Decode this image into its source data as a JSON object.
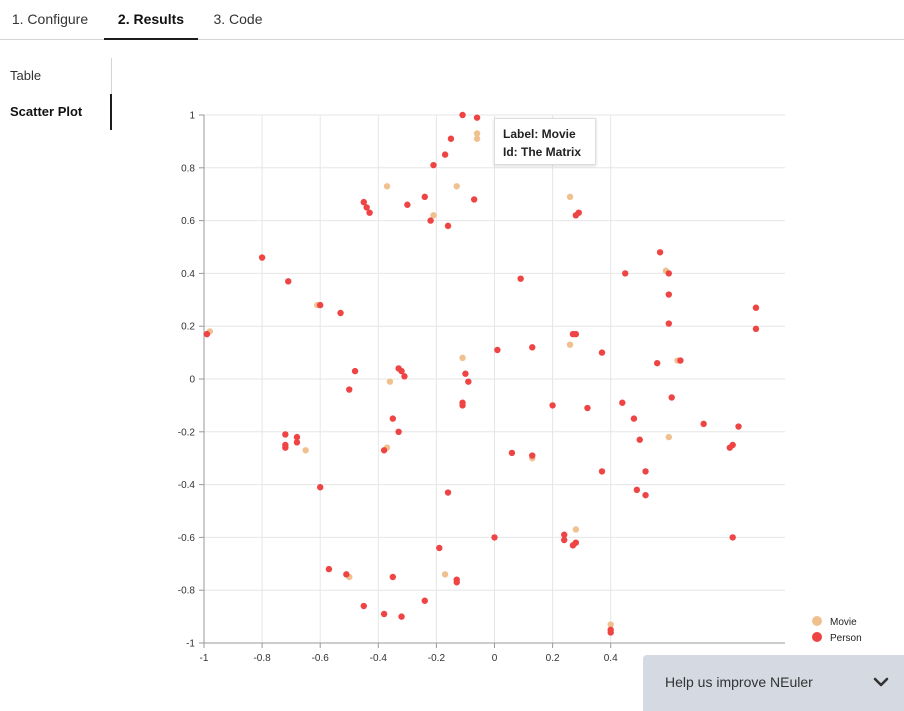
{
  "tabs": [
    {
      "label": "1. Configure"
    },
    {
      "label": "2. Results"
    },
    {
      "label": "3. Code"
    }
  ],
  "sidebar": {
    "items": [
      {
        "label": "Table"
      },
      {
        "label": "Scatter Plot"
      }
    ]
  },
  "tooltip": {
    "line1": "Label: Movie",
    "line2": "Id: The Matrix"
  },
  "feedback": {
    "label": "Help us improve NEuler"
  },
  "colors": {
    "movie": "#f0c08e",
    "person": "#ef4444"
  },
  "chart_data": {
    "type": "scatter",
    "xlim": [
      -1,
      1
    ],
    "ylim": [
      -1,
      1
    ],
    "x_ticks": [
      "-1",
      "-0.8",
      "-0.6",
      "-0.4",
      "-0.2",
      "0",
      "0.2",
      "0.4"
    ],
    "y_ticks": [
      "1",
      "0.8",
      "0.6",
      "0.4",
      "0.2",
      "0",
      "-0.2",
      "-0.4",
      "-0.6",
      "-0.8",
      "-1"
    ],
    "grid": true,
    "legend_position": "bottom-right",
    "series": [
      {
        "name": "Movie",
        "points": [
          [
            -0.98,
            0.18
          ],
          [
            -0.37,
            0.73
          ],
          [
            -0.21,
            0.62
          ],
          [
            -0.13,
            0.73
          ],
          [
            -0.06,
            0.93
          ],
          [
            -0.06,
            0.91
          ],
          [
            0.26,
            0.69
          ],
          [
            -0.61,
            0.28
          ],
          [
            -0.11,
            0.08
          ],
          [
            0.26,
            0.13
          ],
          [
            0.59,
            0.41
          ],
          [
            0.63,
            0.07
          ],
          [
            0.9,
            0.27
          ],
          [
            -0.36,
            -0.01
          ],
          [
            -0.37,
            -0.26
          ],
          [
            -0.65,
            -0.27
          ],
          [
            0.13,
            -0.3
          ],
          [
            0.28,
            -0.57
          ],
          [
            0.6,
            -0.22
          ],
          [
            -0.5,
            -0.75
          ],
          [
            -0.17,
            -0.74
          ],
          [
            0.4,
            -0.93
          ]
        ]
      },
      {
        "name": "Person",
        "points": [
          [
            -0.11,
            1.0
          ],
          [
            -0.06,
            0.99
          ],
          [
            -0.15,
            0.91
          ],
          [
            -0.17,
            0.85
          ],
          [
            -0.21,
            0.81
          ],
          [
            -0.45,
            0.67
          ],
          [
            -0.44,
            0.65
          ],
          [
            -0.43,
            0.63
          ],
          [
            -0.3,
            0.66
          ],
          [
            -0.24,
            0.69
          ],
          [
            -0.22,
            0.6
          ],
          [
            -0.16,
            0.58
          ],
          [
            -0.07,
            0.68
          ],
          [
            0.28,
            0.62
          ],
          [
            0.29,
            0.63
          ],
          [
            -0.8,
            0.46
          ],
          [
            -0.71,
            0.37
          ],
          [
            -0.6,
            0.28
          ],
          [
            -0.53,
            0.25
          ],
          [
            0.09,
            0.38
          ],
          [
            0.45,
            0.4
          ],
          [
            0.57,
            0.48
          ],
          [
            0.6,
            0.4
          ],
          [
            0.6,
            0.32
          ],
          [
            0.6,
            0.21
          ],
          [
            -0.99,
            0.17
          ],
          [
            0.27,
            0.17
          ],
          [
            0.28,
            0.17
          ],
          [
            0.37,
            0.1
          ],
          [
            0.56,
            0.06
          ],
          [
            0.64,
            0.07
          ],
          [
            0.9,
            0.27
          ],
          [
            0.9,
            0.19
          ],
          [
            0.01,
            0.11
          ],
          [
            0.13,
            0.12
          ],
          [
            -0.48,
            0.03
          ],
          [
            -0.33,
            0.04
          ],
          [
            -0.32,
            0.03
          ],
          [
            -0.31,
            0.01
          ],
          [
            -0.1,
            0.02
          ],
          [
            -0.09,
            -0.01
          ],
          [
            -0.5,
            -0.04
          ],
          [
            -0.11,
            -0.09
          ],
          [
            -0.11,
            -0.1
          ],
          [
            0.2,
            -0.1
          ],
          [
            0.32,
            -0.11
          ],
          [
            0.44,
            -0.09
          ],
          [
            0.48,
            -0.15
          ],
          [
            0.61,
            -0.07
          ],
          [
            0.72,
            -0.17
          ],
          [
            0.84,
            -0.18
          ],
          [
            -0.35,
            -0.15
          ],
          [
            -0.33,
            -0.2
          ],
          [
            -0.72,
            -0.21
          ],
          [
            -0.72,
            -0.25
          ],
          [
            -0.72,
            -0.26
          ],
          [
            -0.68,
            -0.22
          ],
          [
            -0.68,
            -0.24
          ],
          [
            -0.38,
            -0.27
          ],
          [
            0.5,
            -0.23
          ],
          [
            0.82,
            -0.25
          ],
          [
            0.81,
            -0.26
          ],
          [
            0.06,
            -0.28
          ],
          [
            0.13,
            -0.29
          ],
          [
            0.37,
            -0.35
          ],
          [
            0.52,
            -0.35
          ],
          [
            0.49,
            -0.42
          ],
          [
            0.52,
            -0.44
          ],
          [
            -0.6,
            -0.41
          ],
          [
            -0.16,
            -0.43
          ],
          [
            0.0,
            -0.6
          ],
          [
            0.24,
            -0.59
          ],
          [
            0.24,
            -0.61
          ],
          [
            0.28,
            -0.62
          ],
          [
            0.27,
            -0.63
          ],
          [
            0.82,
            -0.6
          ],
          [
            -0.19,
            -0.64
          ],
          [
            -0.57,
            -0.72
          ],
          [
            -0.51,
            -0.74
          ],
          [
            -0.35,
            -0.75
          ],
          [
            -0.13,
            -0.76
          ],
          [
            -0.13,
            -0.77
          ],
          [
            -0.45,
            -0.86
          ],
          [
            -0.38,
            -0.89
          ],
          [
            -0.32,
            -0.9
          ],
          [
            -0.24,
            -0.84
          ],
          [
            0.4,
            -0.95
          ],
          [
            0.4,
            -0.96
          ]
        ]
      }
    ]
  }
}
